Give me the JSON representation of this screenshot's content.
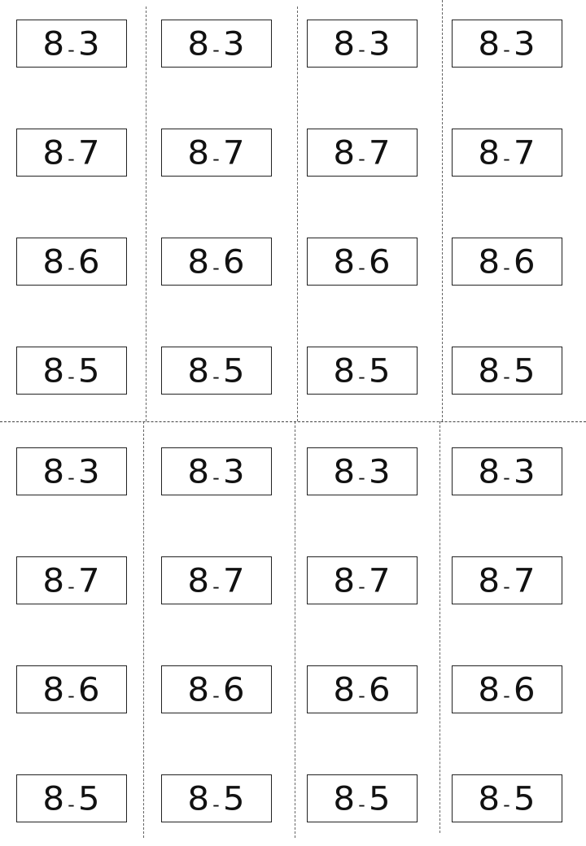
{
  "sheet": {
    "sections": [
      {
        "columns": [
          [
            "8-3",
            "8-7",
            "8-6",
            "8-5"
          ],
          [
            "8-3",
            "8-7",
            "8-6",
            "8-5"
          ],
          [
            "8-3",
            "8-7",
            "8-6",
            "8-5"
          ],
          [
            "8-3",
            "8-7",
            "8-6",
            "8-5"
          ]
        ]
      },
      {
        "columns": [
          [
            "8-3",
            "8-7",
            "8-6",
            "8-5"
          ],
          [
            "8-3",
            "8-7",
            "8-6",
            "8-5"
          ],
          [
            "8-3",
            "8-7",
            "8-6",
            "8-5"
          ],
          [
            "8-3",
            "8-7",
            "8-6",
            "8-5"
          ]
        ]
      }
    ],
    "cut_line_color": "#666666"
  }
}
